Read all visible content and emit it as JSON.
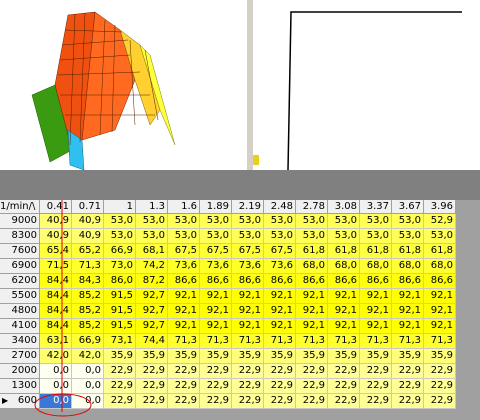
{
  "table": {
    "corner": "1/min/\\",
    "columns": [
      "0.41",
      "0.71",
      "1",
      "1.3",
      "1.6",
      "1.89",
      "2.19",
      "2.48",
      "2.78",
      "3.08",
      "3.37",
      "3.67",
      "3.96"
    ],
    "rows": [
      {
        "label": "9000",
        "cells": [
          "40,9",
          "40,9",
          "53,0",
          "53,0",
          "53,0",
          "53,0",
          "53,0",
          "53,0",
          "53,0",
          "53,0",
          "53,0",
          "53,0",
          "52,9"
        ]
      },
      {
        "label": "8300",
        "cells": [
          "40,9",
          "40,9",
          "53,0",
          "53,0",
          "53,0",
          "53,0",
          "53,0",
          "53,0",
          "53,0",
          "53,0",
          "53,0",
          "53,0",
          "53,0"
        ]
      },
      {
        "label": "7600",
        "cells": [
          "65,4",
          "65,2",
          "66,9",
          "68,1",
          "67,5",
          "67,5",
          "67,5",
          "67,5",
          "61,8",
          "61,8",
          "61,8",
          "61,8",
          "61,8"
        ]
      },
      {
        "label": "6900",
        "cells": [
          "71,5",
          "71,3",
          "73,0",
          "74,2",
          "73,6",
          "73,6",
          "73,6",
          "73,6",
          "68,0",
          "68,0",
          "68,0",
          "68,0",
          "68,0"
        ]
      },
      {
        "label": "6200",
        "cells": [
          "84,4",
          "84,3",
          "86,0",
          "87,2",
          "86,6",
          "86,6",
          "86,6",
          "86,6",
          "86,6",
          "86,6",
          "86,6",
          "86,6",
          "86,6"
        ]
      },
      {
        "label": "5500",
        "cells": [
          "84,4",
          "85,2",
          "91,5",
          "92,7",
          "92,1",
          "92,1",
          "92,1",
          "92,1",
          "92,1",
          "92,1",
          "92,1",
          "92,1",
          "92,1"
        ]
      },
      {
        "label": "4800",
        "cells": [
          "84,4",
          "85,2",
          "91,5",
          "92,7",
          "92,1",
          "92,1",
          "92,1",
          "92,1",
          "92,1",
          "92,1",
          "92,1",
          "92,1",
          "92,1"
        ]
      },
      {
        "label": "4100",
        "cells": [
          "84,4",
          "85,2",
          "91,5",
          "92,7",
          "92,1",
          "92,1",
          "92,1",
          "92,1",
          "92,1",
          "92,1",
          "92,1",
          "92,1",
          "92,1"
        ]
      },
      {
        "label": "3400",
        "cells": [
          "63,1",
          "66,9",
          "73,1",
          "74,4",
          "71,3",
          "71,3",
          "71,3",
          "71,3",
          "71,3",
          "71,3",
          "71,3",
          "71,3",
          "71,3"
        ]
      },
      {
        "label": "2700",
        "cells": [
          "42,0",
          "42,0",
          "35,9",
          "35,9",
          "35,9",
          "35,9",
          "35,9",
          "35,9",
          "35,9",
          "35,9",
          "35,9",
          "35,9",
          "35,9"
        ]
      },
      {
        "label": "2000",
        "cells": [
          "0,0",
          "0,0",
          "22,9",
          "22,9",
          "22,9",
          "22,9",
          "22,9",
          "22,9",
          "22,9",
          "22,9",
          "22,9",
          "22,9",
          "22,9"
        ]
      },
      {
        "label": "1300",
        "cells": [
          "0,0",
          "0,0",
          "22,9",
          "22,9",
          "22,9",
          "22,9",
          "22,9",
          "22,9",
          "22,9",
          "22,9",
          "22,9",
          "22,9",
          "22,9"
        ]
      },
      {
        "label": "600",
        "cells": [
          "0,0",
          "0,0",
          "22,9",
          "22,9",
          "22,9",
          "22,9",
          "22,9",
          "22,9",
          "22,9",
          "22,9",
          "22,9",
          "22,9",
          "22,9"
        ]
      }
    ]
  }
}
